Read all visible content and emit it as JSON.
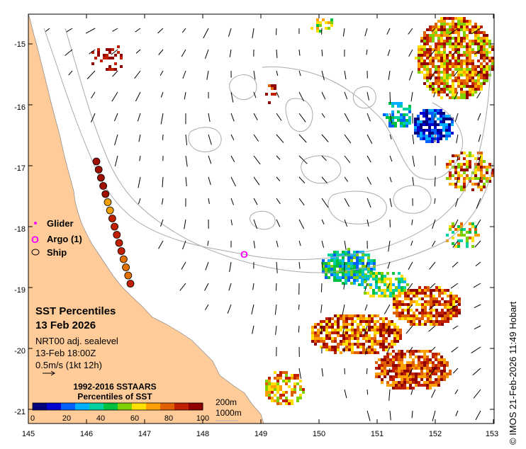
{
  "map": {
    "x_ticks": [
      "145",
      "146",
      "147",
      "148",
      "149",
      "150",
      "151",
      "152",
      "153"
    ],
    "y_ticks": [
      "-15",
      "-16",
      "-17",
      "-18",
      "-19",
      "-20",
      "-21"
    ],
    "land_color": "#ffcc99",
    "ocean_color": "#ffffff",
    "contour_color": "#aaaaaa"
  },
  "legend_markers": {
    "glider": "Glider",
    "argo": "Argo (1)",
    "ship": "Ship",
    "argo_symbol": "O"
  },
  "info": {
    "title": "SST Percentiles",
    "date": "13 Feb 2026",
    "product": "NRT00 adj. sealevel",
    "time": "13-Feb 18:00Z",
    "vector_scale": "0.5m/s (1kt 12h)"
  },
  "colorbar": {
    "title_line1": "1992-2016 SSTAARS",
    "title_line2": "Percentiles of SST",
    "ticks": [
      "0",
      "20",
      "40",
      "60",
      "80",
      "100"
    ],
    "colors": [
      "#00007f",
      "#0000d0",
      "#0060ff",
      "#00b0ff",
      "#00d0a0",
      "#00c040",
      "#80d000",
      "#ffe000",
      "#ffa000",
      "#e06000",
      "#c02000",
      "#900000"
    ]
  },
  "depth_labels": {
    "d200": "200m",
    "d1000": "1000m"
  },
  "credit": "© IMOS 21-Feb-2026 11:49 Hobart"
}
